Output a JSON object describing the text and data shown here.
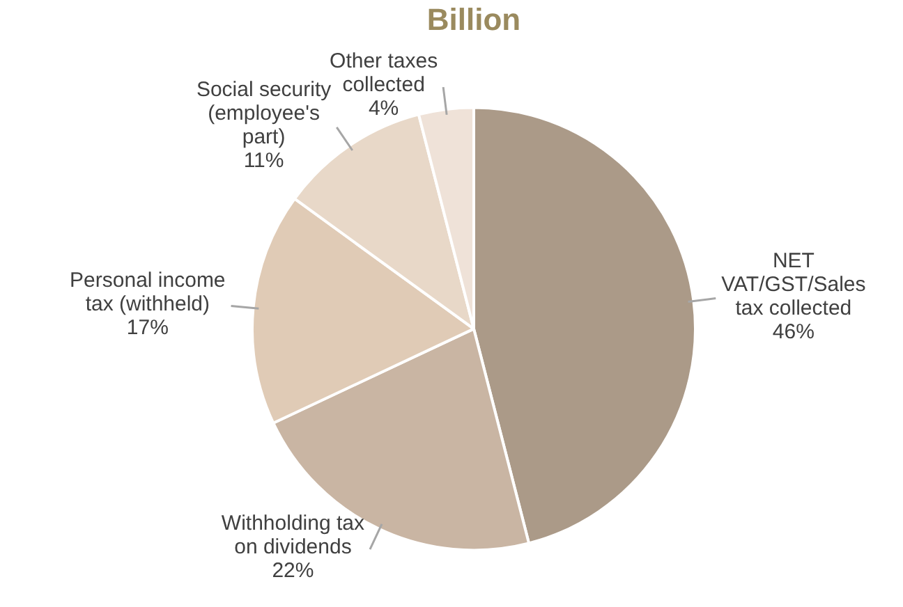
{
  "chart_data": {
    "type": "pie",
    "title": "Billion",
    "categories": [
      "NET VAT/GST/Sales tax collected",
      "Withholding tax on dividends",
      "Personal income tax (withheld)",
      "Social security (employee's part)",
      "Other taxes collected"
    ],
    "values": [
      46,
      22,
      17,
      11,
      4
    ],
    "colors": [
      "#ab9a88",
      "#c9b5a3",
      "#e0cbb6",
      "#e8d8c8",
      "#efe2d8"
    ],
    "value_labels": [
      "46%",
      "22%",
      "17%",
      "11%",
      "4%"
    ],
    "legend": false
  }
}
